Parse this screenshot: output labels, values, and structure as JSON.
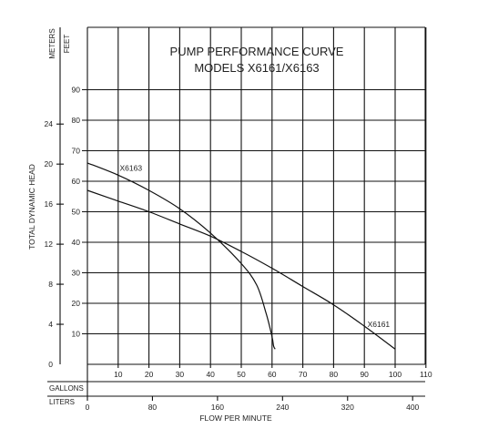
{
  "chart_data": {
    "type": "line",
    "title_lines": [
      "PUMP PERFORMANCE CURVE",
      "MODELS X6161/X6163"
    ],
    "xlabel": "FLOW PER MINUTE",
    "ylabel": "TOTAL DYNAMIC HEAD",
    "x_units": {
      "primary": "GALLONS",
      "secondary": "LITERS"
    },
    "y_units": {
      "primary": "FEET",
      "secondary": "METERS"
    },
    "xlim": [
      0,
      110
    ],
    "ylim": [
      0,
      100
    ],
    "x_ticks": [
      10,
      20,
      30,
      40,
      50,
      60,
      70,
      80,
      90,
      100,
      110
    ],
    "y_ticks": [
      10,
      20,
      30,
      40,
      50,
      60,
      70,
      80,
      90
    ],
    "liters_ticks": [
      0,
      80,
      160,
      240,
      320,
      400
    ],
    "meters_ticks": [
      4,
      8,
      12,
      16,
      20,
      24
    ],
    "series": [
      {
        "name": "X6163",
        "x": [
          0,
          10,
          20,
          30,
          40,
          50,
          55,
          58,
          60,
          60.5,
          61
        ],
        "y": [
          66,
          62,
          57,
          51,
          43,
          33,
          26,
          17,
          9,
          6,
          5
        ]
      },
      {
        "name": "X6161",
        "x": [
          0,
          10,
          20,
          30,
          40,
          50,
          60,
          70,
          80,
          90,
          100
        ],
        "y": [
          57,
          53.5,
          50,
          46,
          42,
          37,
          31.5,
          25.5,
          19.5,
          12.5,
          5
        ]
      }
    ],
    "grid": true
  }
}
